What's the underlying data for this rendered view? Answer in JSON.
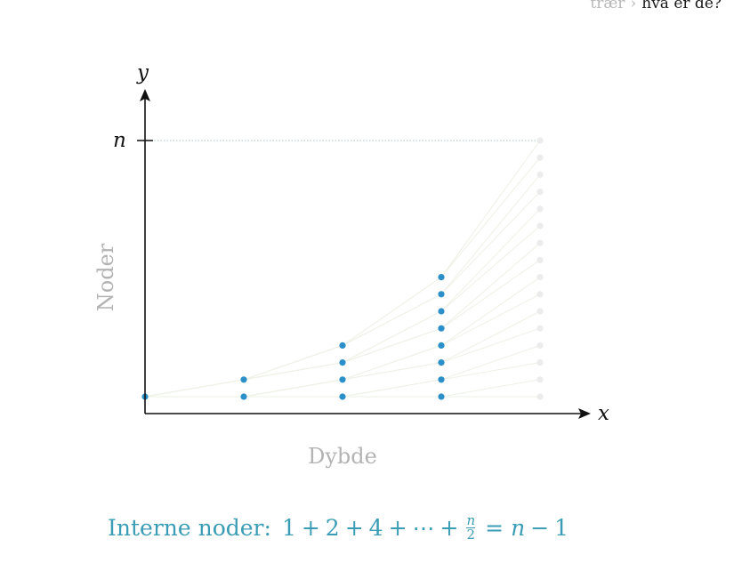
{
  "breadcrumb": {
    "parent": "trær",
    "separator": "›",
    "current": "hva er de?"
  },
  "diagram": {
    "x_axis_letter": "x",
    "y_axis_letter": "y",
    "y_tick_label": "n",
    "x_axis_title": "Dybde",
    "y_axis_title": "Noder",
    "levels_visible": [
      1,
      2,
      4,
      8
    ],
    "ghost_level_count": 16,
    "colors": {
      "axis": "#111111",
      "node": "#2b8fc9",
      "ghost": "#ececec",
      "guide": "#a9c9c9",
      "fan_line": "#eef1e6"
    }
  },
  "formula": {
    "label": "Interne noder:",
    "terms": [
      "1",
      "+",
      "2",
      "+",
      "4",
      "+",
      "⋯",
      "+"
    ],
    "frac_num": "n",
    "frac_den": "2",
    "rhs_eq": "=",
    "rhs_var": "n",
    "rhs_minus": "−",
    "rhs_one": "1"
  }
}
